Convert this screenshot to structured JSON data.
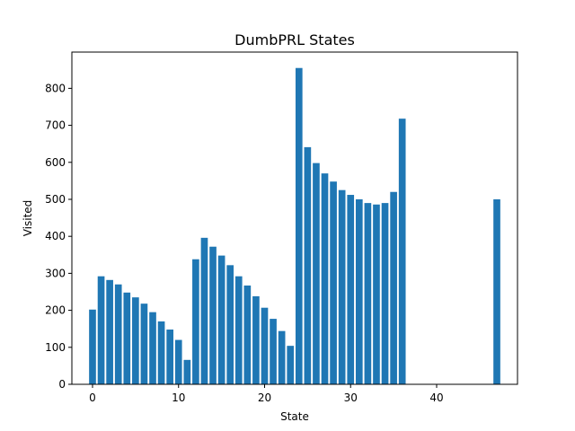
{
  "chart_data": {
    "type": "bar",
    "title": "DumbPRL States",
    "xlabel": "State",
    "ylabel": "Visited",
    "x": [
      0,
      1,
      2,
      3,
      4,
      5,
      6,
      7,
      8,
      9,
      10,
      11,
      12,
      13,
      14,
      15,
      16,
      17,
      18,
      19,
      20,
      21,
      22,
      23,
      24,
      25,
      26,
      27,
      28,
      29,
      30,
      31,
      32,
      33,
      34,
      35,
      36,
      47
    ],
    "values": [
      202,
      292,
      282,
      270,
      248,
      235,
      218,
      195,
      170,
      148,
      120,
      66,
      338,
      396,
      372,
      348,
      322,
      292,
      267,
      238,
      207,
      177,
      144,
      104,
      855,
      641,
      598,
      570,
      548,
      525,
      512,
      500,
      490,
      486,
      490,
      520,
      718,
      500
    ],
    "xlim": [
      -2.4,
      49.4
    ],
    "ylim": [
      0,
      898
    ],
    "xticks": [
      0,
      10,
      20,
      30,
      40
    ],
    "yticks": [
      0,
      100,
      200,
      300,
      400,
      500,
      600,
      700,
      800
    ],
    "grid": false,
    "bar_color": "#1f77b4"
  }
}
